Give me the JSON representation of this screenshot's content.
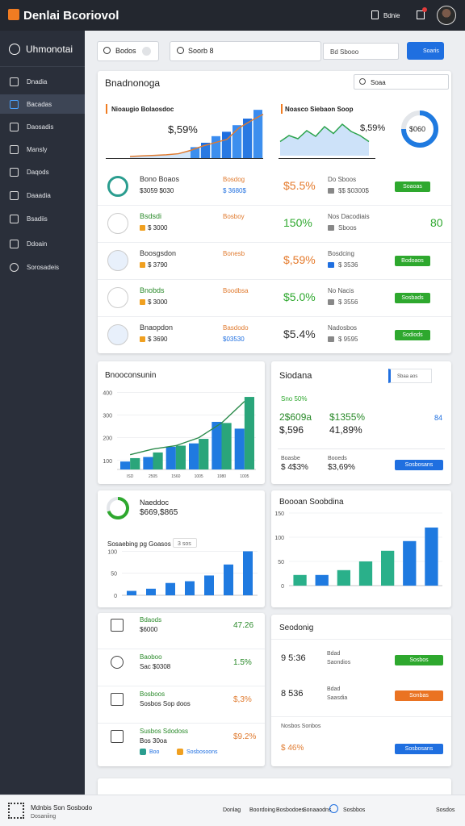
{
  "header": {
    "logo": "Denlai Bcoriovol",
    "user": "Bdnie"
  },
  "sidebar": {
    "title": "Uhmonotai",
    "items": [
      "Dnadia",
      "Bacadas",
      "Daosadis",
      "Mansly",
      "Daqods",
      "Daaadia",
      "Bsadiis",
      "Ddoain",
      "Sorosadeis"
    ]
  },
  "toolbar": {
    "filter": "Bodos",
    "search": "Soorb 8",
    "range": "Bd Sbooo",
    "button": "Soaris"
  },
  "overview": {
    "title": "Bnadnonoga",
    "select": "Soaa",
    "chart_a": {
      "title": "Nioaugio Bolaosdoc",
      "value": "$,59%",
      "ylim": [
        0,
        100
      ],
      "area": [
        3,
        4,
        5,
        6,
        8,
        14,
        22,
        28,
        34,
        55,
        68,
        80
      ],
      "bars": [
        20,
        28,
        40,
        48,
        60,
        72,
        88
      ]
    },
    "chart_b": {
      "title": "Noasco Siebaon Soop",
      "value": "$,59%",
      "ylim": [
        0,
        100
      ],
      "area": [
        35,
        50,
        42,
        62,
        48,
        72,
        55,
        78,
        60,
        50,
        35
      ],
      "donut": 75,
      "donut_label": "$060"
    },
    "rows": [
      {
        "name": "Bono Boaos",
        "sub": "$3059 $030",
        "tag": "Bosdog",
        "tag_sub": "$ 3680$",
        "pct": "$5.5%",
        "info": "Do Sboos",
        "info_sub": "$$ $0300$",
        "button": "Soaoas"
      },
      {
        "name": "Bsdsdi",
        "sub": "$ 3000",
        "tag": "Bosboy",
        "tag_sub": null,
        "pct": "150%",
        "info": "Nos Dacodiais",
        "info_sub": "Sboos",
        "value": "80"
      },
      {
        "name": "Boosgsdon",
        "sub": "$ 3790",
        "tag": "Bonesb",
        "tag_sub": null,
        "pct": "$,59%",
        "info": "Bosdcing",
        "info_sub": "$ 3536",
        "button": "Bodoaos"
      },
      {
        "name": "Bnobds",
        "sub": "$ 3000",
        "tag": "Boodbsa",
        "tag_sub": null,
        "pct": "$5.0%",
        "info": "No Nacis",
        "info_sub": "$ 3556",
        "button": "Sosbads"
      },
      {
        "name": "Bnaopdon",
        "sub": "$ 3690",
        "tag": "Basdodo",
        "tag_sub": "$03530",
        "pct": "$5.4%",
        "info": "Nadosbos",
        "info_sub": "$ 9595",
        "button": "Sodiods"
      }
    ]
  },
  "consumption": {
    "title": "Bnooconsunin",
    "ylim": [
      60,
      430
    ],
    "yticks": [
      400,
      300,
      200,
      100
    ],
    "categories": [
      "ISD",
      "2505",
      "1560",
      "1005",
      "1980",
      "1005"
    ],
    "bars": [
      {
        "color": "#1f7ae0",
        "values": [
          95,
          115,
          160,
          175,
          270,
          240
        ]
      },
      {
        "color": "#2aa57a",
        "values": [
          110,
          135,
          165,
          195,
          265,
          380
        ]
      }
    ],
    "line": [
      125,
      150,
      165,
      200,
      265,
      360
    ]
  },
  "stats": {
    "title": "Siodana",
    "select": "Sbaa aos",
    "trend": "Sno 50%",
    "a": "2$609a",
    "b": "$1355%",
    "c": "$,596",
    "d": "41,89%",
    "e": "84",
    "f": "Boasbe",
    "f_sub": "$ 4$3%",
    "g": "Booeds",
    "g_sub": "$3,69%",
    "button": "Sosbosans"
  },
  "growth": {
    "name": "Naeddoc",
    "value": "$669,$865",
    "donut": 70,
    "subtitle": "Sosaebing pg Goasos",
    "chip": "3 sos",
    "ylim": [
      0,
      110
    ],
    "yticks": [
      100,
      50,
      0
    ],
    "values": [
      10,
      15,
      28,
      32,
      45,
      70,
      100
    ]
  },
  "sessions": {
    "title": "Boooan Soobdina",
    "ylim": [
      0,
      150
    ],
    "yticks": [
      150,
      100,
      50,
      0
    ],
    "values": [
      22,
      22,
      32,
      50,
      72,
      92,
      120
    ],
    "colors": [
      "#2ab08a",
      "#1f7ae0",
      "#2ab08a",
      "#2ab08a",
      "#2ab08a",
      "#1f7ae0",
      "#1f7ae0"
    ]
  },
  "list": [
    {
      "name": "Bdaods",
      "sub": "$6000",
      "value": "47.26"
    },
    {
      "name": "Baoboo",
      "sub": "Sac $0308",
      "value": "1.5%"
    },
    {
      "name": "Bosboos",
      "sub": "Sosbos Sop doos",
      "value": "$,3%"
    },
    {
      "name": "Susbos Sdodoss",
      "sub": "Bos 30oa",
      "value": "$9.2%",
      "chips": [
        "Boo",
        "Sosbosoons"
      ]
    }
  ],
  "schedule": {
    "title": "Seodonig",
    "rows": [
      {
        "name": "9 5:36",
        "label": "Bdad",
        "label_sub": "Saondios",
        "button": "Sosbos"
      },
      {
        "name": "8 536",
        "label": "Bdad",
        "label_sub": "Saasdia",
        "button": "Sonbas"
      }
    ],
    "last": "Nosbos Sonbos",
    "last_value": "$ 46%",
    "last_button": "Sosbosans"
  },
  "footer": {
    "brand": "Mdnbis Son Sosbodo",
    "brand_sub": "Dosaniing",
    "links": [
      "Donlag",
      "Boordoing",
      "Bosbodoes",
      "Sonaaodns"
    ],
    "right": [
      "Sosbbos",
      "Sosdos"
    ]
  }
}
